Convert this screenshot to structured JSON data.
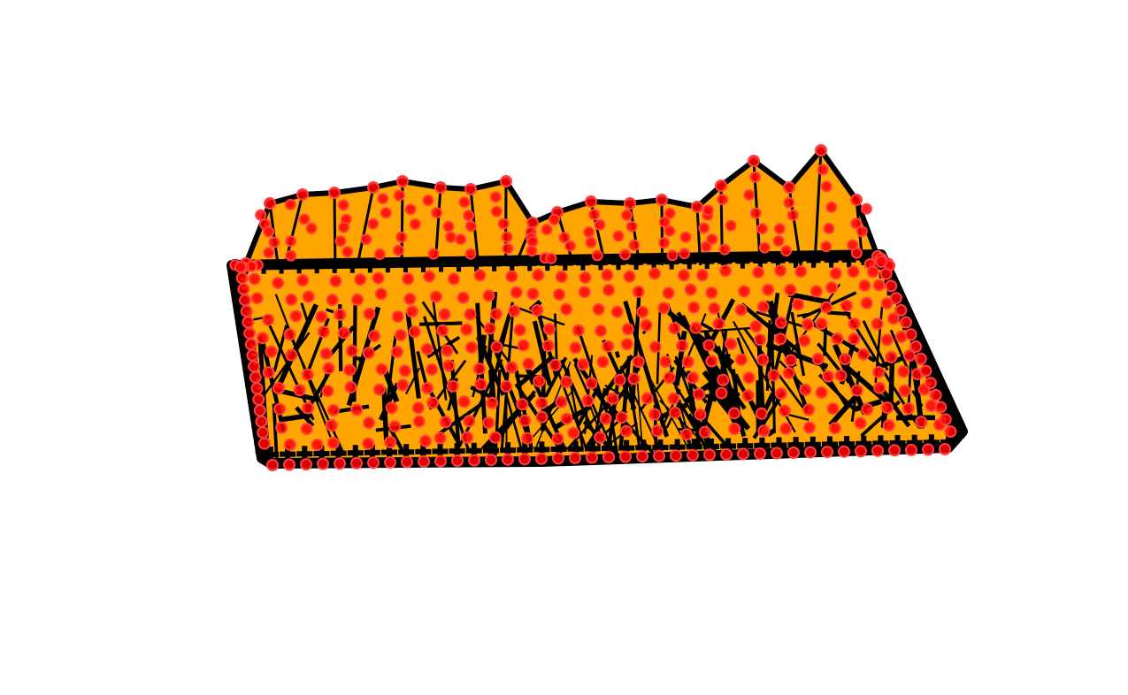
{
  "figure": {
    "title": "",
    "background_color": "#ffffff",
    "axes_visible": false
  },
  "colors": {
    "surface_fill": "#FFA500",
    "edge_color": "#000000",
    "node_color": "#FF0000",
    "node_edge": "#FF4040"
  },
  "mesh": {
    "kind": "3D triangulated surface mesh (sheet with raised ridge)",
    "boundary_marker": "plus",
    "node_marker": "circle"
  }
}
